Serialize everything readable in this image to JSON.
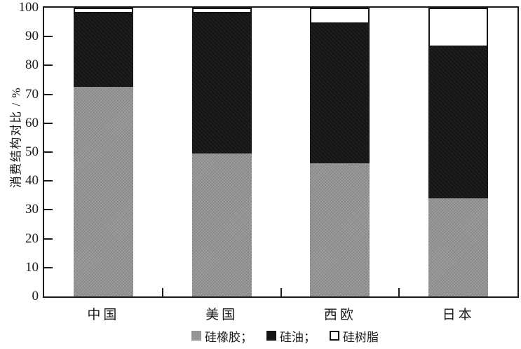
{
  "figure": {
    "y_axis_title": "消费结构对比 / %"
  },
  "chart_data": {
    "type": "bar",
    "stacked": true,
    "title": "",
    "xlabel": "",
    "ylabel": "消费结构对比 / %",
    "ylim": [
      0,
      100
    ],
    "yticks": [
      0,
      10,
      20,
      30,
      40,
      50,
      60,
      70,
      80,
      90,
      100
    ],
    "grid": false,
    "legend_position": "bottom",
    "categories": [
      "中国",
      "美国",
      "西欧",
      "日本"
    ],
    "series": [
      {
        "name": "硅橡胶",
        "legend_label": "硅橡胶；",
        "color": "#959595",
        "values": [
          72.5,
          49.5,
          46,
          34
        ]
      },
      {
        "name": "硅油",
        "legend_label": "硅油；",
        "color": "#161616",
        "values": [
          25.5,
          48.5,
          48.5,
          52.5
        ]
      },
      {
        "name": "硅树脂",
        "legend_label": "硅树脂",
        "color": "#ffffff",
        "values": [
          2,
          2,
          5.5,
          13.5
        ]
      }
    ],
    "colors": {
      "axis": "#1a1a1a",
      "background": "#ffffff",
      "bar_gray": "#959595",
      "bar_black": "#161616",
      "bar_white": "#ffffff"
    }
  }
}
